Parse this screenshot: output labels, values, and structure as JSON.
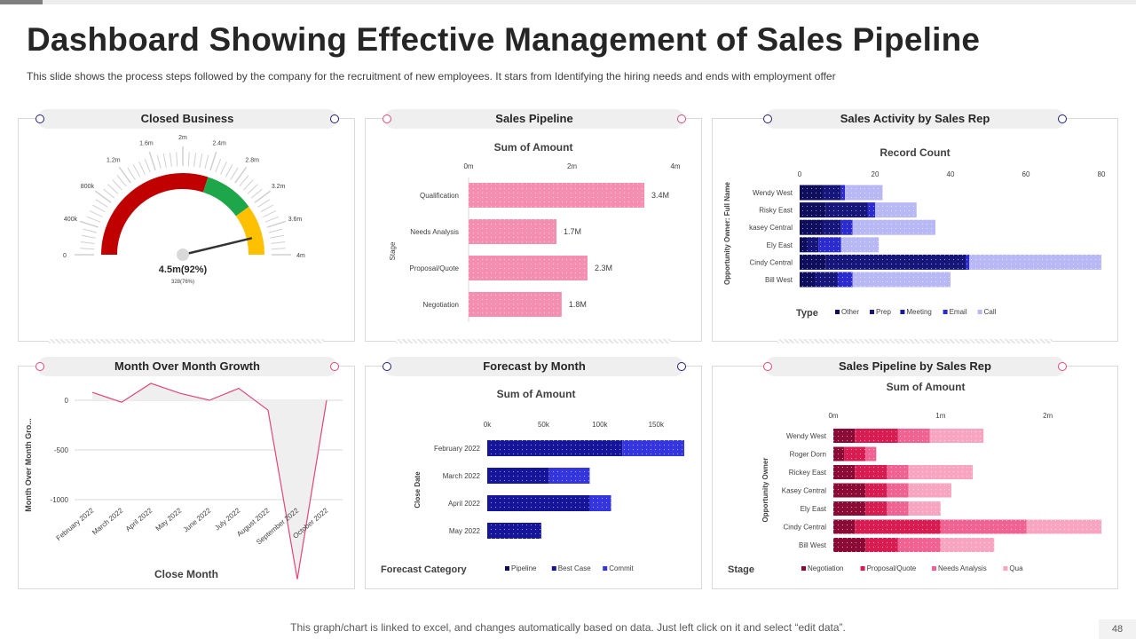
{
  "header": {
    "title": "Dashboard Showing Effective Management of Sales Pipeline",
    "subtitle": "This slide shows the process steps followed by the company for the recruitment of new employees. It stars from Identifying the hiring needs and ends with employment offer"
  },
  "footer": {
    "note": "This graph/chart is linked to excel, and changes automatically based on data. Just left click on it and select “edit data”.",
    "page_number": "48"
  },
  "colors": {
    "gauge_red": "#c00000",
    "gauge_green": "#1ea64a",
    "gauge_yellow": "#ffc000",
    "pink": "#f48fb1",
    "navy_dark": "#0d0d5c",
    "blue": "#2b2bd0",
    "blue_light": "#b8b8f5"
  },
  "chart_data": [
    {
      "id": "closed_business",
      "type": "gauge",
      "title": "Closed Business",
      "value_label": "4.5m(92%)",
      "sub_label": "328(76%)",
      "min": 0,
      "max": 4,
      "value": 3.7,
      "tick_labels": [
        "0",
        "400k",
        "800k",
        "1.2m",
        "1.6m",
        "2m",
        "2.4m",
        "2.8m",
        "3.2m",
        "3.6m",
        "4m"
      ],
      "bands": [
        {
          "from": 0,
          "to": 2.4,
          "color": "#c00000"
        },
        {
          "from": 2.4,
          "to": 3.2,
          "color": "#1ea64a"
        },
        {
          "from": 3.2,
          "to": 4,
          "color": "#ffc000"
        }
      ]
    },
    {
      "id": "sales_pipeline",
      "type": "bar",
      "orientation": "horizontal",
      "title": "Sales Pipeline",
      "chart_title": "Sum of Amount",
      "ylabel": "Stage",
      "categories": [
        "Qualification",
        "Needs Analysis",
        "Proposal/Quote",
        "Negotiation"
      ],
      "values": [
        3.4,
        1.7,
        2.3,
        1.8
      ],
      "data_labels": [
        "3.4M",
        "1.7M",
        "2.3M",
        "1.8M"
      ],
      "xlim": [
        0,
        4
      ],
      "x_ticks": [
        0,
        2,
        4
      ],
      "x_tick_labels": [
        "0m",
        "2m",
        "4m"
      ]
    },
    {
      "id": "sales_activity",
      "type": "bar",
      "orientation": "horizontal",
      "stacked": true,
      "title": "Sales Activity by Sales Rep",
      "chart_title": "Record Count",
      "ylabel": "Opportunity Owner: Full Name",
      "legend_title": "Type",
      "categories": [
        "Wendy West",
        "Risky East",
        "kasey Central",
        "Ely East",
        "Cindy Central",
        "Bill West"
      ],
      "series": [
        {
          "name": "Other",
          "values": [
            6,
            7,
            6,
            2,
            7,
            4
          ],
          "color": "#0d0d5c"
        },
        {
          "name": "Prep",
          "values": [
            5,
            11,
            5,
            3,
            37,
            6
          ],
          "color": "#15157a"
        },
        {
          "name": "Meeting",
          "values": [
            0,
            0,
            0,
            0,
            0,
            0
          ],
          "color": "#1a1a99"
        },
        {
          "name": "Email",
          "values": [
            1,
            2,
            3,
            6,
            1,
            4
          ],
          "color": "#2b2bd0"
        },
        {
          "name": "Call",
          "values": [
            10,
            11,
            22,
            10,
            35,
            26
          ],
          "color": "#b8b8f5"
        }
      ],
      "xlim": [
        0,
        80
      ],
      "x_ticks": [
        0,
        20,
        40,
        60,
        80
      ]
    },
    {
      "id": "month_growth",
      "type": "area",
      "title": "Month Over Month Growth",
      "xlabel": "Close Month",
      "ylabel": "Month Over Month Gro...",
      "categories": [
        "February 2022",
        "March 2022",
        "April 2022",
        "May 2022",
        "June 2022",
        "July 2022",
        "August 2022",
        "September 2022",
        "October 2022"
      ],
      "values": [
        80,
        -20,
        170,
        70,
        0,
        120,
        -100,
        -1800,
        0
      ],
      "ylim": [
        -1000,
        0
      ],
      "y_ticks": [
        0,
        -500,
        -1000
      ]
    },
    {
      "id": "forecast_month",
      "type": "bar",
      "orientation": "horizontal",
      "stacked": true,
      "title": "Forecast by Month",
      "chart_title": "Sum of Amount",
      "ylabel": "Close Date",
      "legend_title": "Forecast Category",
      "categories": [
        "February 2022",
        "March 2022",
        "April 2022",
        "May 2022"
      ],
      "series": [
        {
          "name": "Pipeline",
          "values": [
            0,
            0,
            0,
            0
          ],
          "color": "#0d0d5c"
        },
        {
          "name": "Best Case",
          "values": [
            120,
            55,
            91,
            48
          ],
          "color": "#15159a"
        },
        {
          "name": "Commit",
          "values": [
            55,
            36,
            19,
            0
          ],
          "color": "#3535e0"
        }
      ],
      "xlim": [
        0,
        175
      ],
      "x_ticks": [
        0,
        50,
        100,
        150
      ],
      "x_tick_labels": [
        "0k",
        "50k",
        "100k",
        "150k"
      ]
    },
    {
      "id": "pipeline_rep",
      "type": "bar",
      "orientation": "horizontal",
      "stacked": true,
      "title": "Sales Pipeline by Sales Rep",
      "chart_title": "Sum of Amount",
      "ylabel": "Opportunity Owner",
      "legend_title": "Stage",
      "categories": [
        "Wendy West",
        "Roger Dorn",
        "Rickey East",
        "Kasey Central",
        "Ely East",
        "Cindy Central",
        "Bill West"
      ],
      "series": [
        {
          "name": "Negotiation",
          "values": [
            0.2,
            0.1,
            0.2,
            0.3,
            0.3,
            0.2,
            0.3
          ],
          "color": "#8b0a35"
        },
        {
          "name": "Proposal/Quote",
          "values": [
            0.4,
            0.2,
            0.3,
            0.2,
            0.2,
            0.8,
            0.3
          ],
          "color": "#d81b50"
        },
        {
          "name": "Needs Analysis",
          "values": [
            0.3,
            0.1,
            0.2,
            0.2,
            0.2,
            0.8,
            0.4
          ],
          "color": "#f06292"
        },
        {
          "name": "Qua",
          "values": [
            0.5,
            0.0,
            0.6,
            0.4,
            0.3,
            0.7,
            0.5
          ],
          "color": "#f8a5c2"
        }
      ],
      "xlim": [
        0,
        2.4
      ],
      "x_ticks": [
        0,
        1,
        2
      ],
      "x_tick_labels": [
        "0m",
        "1m",
        "2m"
      ]
    }
  ]
}
